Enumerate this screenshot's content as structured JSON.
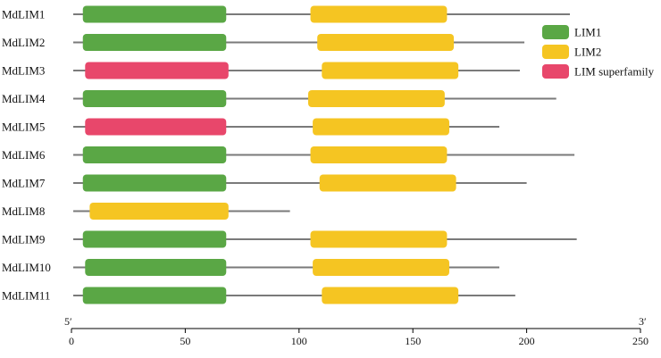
{
  "chart_data": {
    "type": "domain-architecture",
    "xlim": [
      0,
      250
    ],
    "ticks": [
      0,
      50,
      100,
      150,
      200,
      250
    ],
    "tick_labels": [
      "0",
      "50",
      "100",
      "150",
      "200",
      "250"
    ],
    "end_labels": {
      "left": "5′",
      "right": "3′"
    },
    "legend": [
      {
        "name": "LIM1",
        "color": "#5aa745"
      },
      {
        "name": "LIM2",
        "color": "#f5c522"
      },
      {
        "name": "LIM superfamily",
        "color": "#e8476b"
      }
    ],
    "colors": {
      "LIM1": "#5aa745",
      "LIM2": "#f5c522",
      "LIM superfamily": "#e8476b"
    },
    "proteins": [
      {
        "name": "MdLIM1",
        "length": 219,
        "domains": [
          {
            "type": "LIM1",
            "start": 5,
            "end": 68
          },
          {
            "type": "LIM2",
            "start": 105,
            "end": 165
          }
        ]
      },
      {
        "name": "MdLIM2",
        "length": 199,
        "domains": [
          {
            "type": "LIM1",
            "start": 5,
            "end": 68
          },
          {
            "type": "LIM2",
            "start": 108,
            "end": 168
          }
        ]
      },
      {
        "name": "MdLIM3",
        "length": 197,
        "domains": [
          {
            "type": "LIM superfamily",
            "start": 6,
            "end": 69
          },
          {
            "type": "LIM2",
            "start": 110,
            "end": 170
          }
        ]
      },
      {
        "name": "MdLIM4",
        "length": 213,
        "domains": [
          {
            "type": "LIM1",
            "start": 5,
            "end": 68
          },
          {
            "type": "LIM2",
            "start": 104,
            "end": 164
          }
        ]
      },
      {
        "name": "MdLIM5",
        "length": 188,
        "domains": [
          {
            "type": "LIM superfamily",
            "start": 6,
            "end": 68
          },
          {
            "type": "LIM2",
            "start": 106,
            "end": 166
          }
        ]
      },
      {
        "name": "MdLIM6",
        "length": 221,
        "domains": [
          {
            "type": "LIM1",
            "start": 5,
            "end": 68
          },
          {
            "type": "LIM2",
            "start": 105,
            "end": 165
          }
        ]
      },
      {
        "name": "MdLIM7",
        "length": 200,
        "domains": [
          {
            "type": "LIM1",
            "start": 5,
            "end": 68
          },
          {
            "type": "LIM2",
            "start": 109,
            "end": 169
          }
        ]
      },
      {
        "name": "MdLIM8",
        "length": 96,
        "domains": [
          {
            "type": "LIM2",
            "start": 8,
            "end": 69
          }
        ]
      },
      {
        "name": "MdLIM9",
        "length": 222,
        "domains": [
          {
            "type": "LIM1",
            "start": 5,
            "end": 68
          },
          {
            "type": "LIM2",
            "start": 105,
            "end": 165
          }
        ]
      },
      {
        "name": "MdLIM10",
        "length": 188,
        "domains": [
          {
            "type": "LIM1",
            "start": 6,
            "end": 68
          },
          {
            "type": "LIM2",
            "start": 106,
            "end": 166
          }
        ]
      },
      {
        "name": "MdLIM11",
        "length": 195,
        "domains": [
          {
            "type": "LIM1",
            "start": 5,
            "end": 68
          },
          {
            "type": "LIM2",
            "start": 110,
            "end": 170
          }
        ]
      }
    ]
  }
}
